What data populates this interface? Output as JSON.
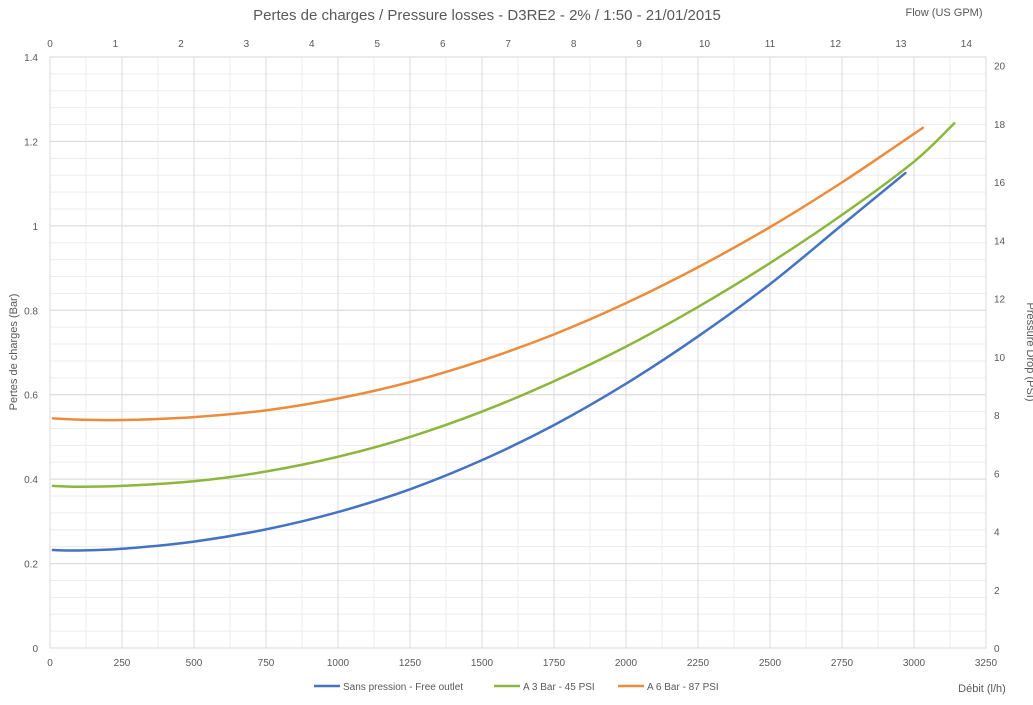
{
  "chart_data": {
    "type": "line",
    "title": "Pertes de charges / Pressure losses - D3RE2 - 2% / 1:50 - 21/01/2015",
    "xlabel": "Débit (l/h)",
    "ylabel": "Pertes de charges (Bar)",
    "x2label": "Flow (US GPM)",
    "y2label": "Pressure Drop (PSI)",
    "xlim": [
      0,
      3250
    ],
    "ylim": [
      0,
      1.4
    ],
    "x2lim": [
      0,
      14.3
    ],
    "y2lim": [
      0,
      20.3
    ],
    "x_ticks": [
      "0",
      "250",
      "500",
      "750",
      "1000",
      "1250",
      "1500",
      "1750",
      "2000",
      "2250",
      "2500",
      "2750",
      "3000",
      "3250"
    ],
    "y_ticks": [
      "0",
      "0.2",
      "0.4",
      "0.6",
      "0.8",
      "1",
      "1.2",
      "1.4"
    ],
    "x2_ticks": [
      "0",
      "1",
      "2",
      "3",
      "4",
      "5",
      "6",
      "7",
      "8",
      "9",
      "10",
      "11",
      "12",
      "13",
      "14"
    ],
    "y2_ticks": [
      "0",
      "2",
      "4",
      "6",
      "8",
      "10",
      "12",
      "14",
      "16",
      "18",
      "20"
    ],
    "grid": true,
    "legend_position": "bottom",
    "series": [
      {
        "name": "Sans pression - Free outlet",
        "color": "#4472C4",
        "x": [
          10,
          100,
          250,
          500,
          750,
          1000,
          1250,
          1500,
          1750,
          2000,
          2250,
          2500,
          2750,
          2970
        ],
        "y": [
          0.232,
          0.231,
          0.235,
          0.252,
          0.281,
          0.322,
          0.376,
          0.445,
          0.528,
          0.626,
          0.738,
          0.862,
          1.002,
          1.125
        ]
      },
      {
        "name": "A 3 Bar - 45 PSI",
        "color": "#8DB63C",
        "x": [
          10,
          100,
          250,
          500,
          750,
          1000,
          1250,
          1500,
          1750,
          2000,
          2250,
          2500,
          2750,
          3000,
          3140
        ],
        "y": [
          0.384,
          0.382,
          0.384,
          0.395,
          0.418,
          0.453,
          0.5,
          0.56,
          0.632,
          0.714,
          0.808,
          0.912,
          1.026,
          1.152,
          1.243
        ]
      },
      {
        "name": "A 6 Bar - 87 PSI",
        "color": "#ED8B3A",
        "x": [
          10,
          100,
          250,
          500,
          750,
          1000,
          1250,
          1500,
          1750,
          2000,
          2250,
          2500,
          2750,
          3000,
          3030
        ],
        "y": [
          0.544,
          0.541,
          0.54,
          0.547,
          0.563,
          0.591,
          0.63,
          0.681,
          0.743,
          0.817,
          0.902,
          0.997,
          1.103,
          1.218,
          1.232
        ]
      }
    ]
  }
}
